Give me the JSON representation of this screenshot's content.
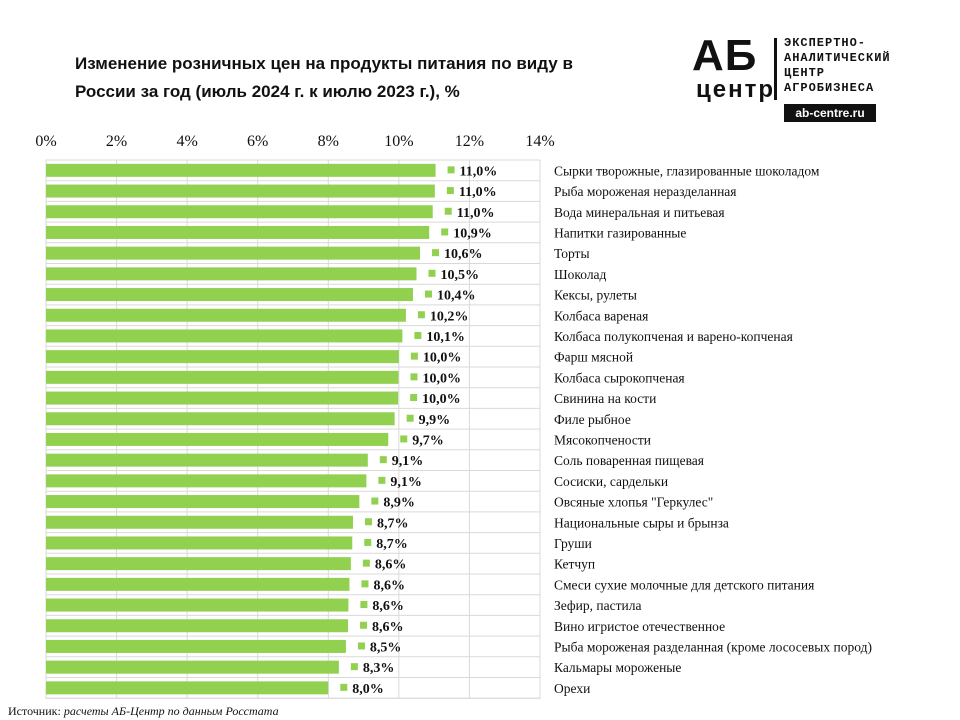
{
  "title": "Изменение розничных цен на продукты питания по виду в России за год (июль 2024 г. к июлю 2023 г.), %",
  "logo": {
    "big": "АБ",
    "small": "центр",
    "lines": [
      "ЭКСПЕРТНО-",
      "АНАЛИТИЧЕСКИЙ",
      "ЦЕНТР",
      "АГРОБИЗНЕСА"
    ],
    "site": "ab-centre.ru"
  },
  "source": {
    "label": "Источник:",
    "text": "расчеты АБ-Центр по данным Росстата"
  },
  "colors": {
    "bar": "#92D050",
    "grid": "#D9D9D9"
  },
  "chart_data": {
    "type": "bar",
    "orientation": "horizontal",
    "axis_ticks": [
      "0%",
      "2%",
      "4%",
      "6%",
      "8%",
      "10%",
      "12%",
      "14%"
    ],
    "xlim": [
      0,
      14
    ],
    "grid": true,
    "legend": "none",
    "categories": [
      "Сырки творожные, глазированные шоколадом",
      "Рыба мороженая неразделанная",
      "Вода минеральная и питьевая",
      "Напитки газированные",
      "Торты",
      "Шоколад",
      "Кексы, рулеты",
      "Колбаса вареная",
      "Колбаса полукопченая и варено-копченая",
      "Фарш мясной",
      "Колбаса сырокопченая",
      "Свинина на кости",
      "Филе рыбное",
      "Мясокопчености",
      "Соль поваренная пищевая",
      "Сосиски, сардельки",
      "Овсяные хлопья \"Геркулес\"",
      "Национальные сыры и брынза",
      "Груши",
      "Кетчуп",
      "Смеси сухие молочные для детского питания",
      "Зефир, пастила",
      "Вино игристое отечественное",
      "Рыба мороженая разделанная (кроме лососевых пород)",
      "Кальмары мороженые",
      "Орехи"
    ],
    "values": [
      11.04,
      11.02,
      10.96,
      10.86,
      10.6,
      10.5,
      10.4,
      10.2,
      10.1,
      10.0,
      9.99,
      9.98,
      9.88,
      9.7,
      9.12,
      9.08,
      8.88,
      8.7,
      8.68,
      8.64,
      8.6,
      8.57,
      8.56,
      8.5,
      8.3,
      8.0
    ],
    "labels": [
      "11,0%",
      "11,0%",
      "11,0%",
      "10,9%",
      "10,6%",
      "10,5%",
      "10,4%",
      "10,2%",
      "10,1%",
      "10,0%",
      "10,0%",
      "10,0%",
      "9,9%",
      "9,7%",
      "9,1%",
      "9,1%",
      "8,9%",
      "8,7%",
      "8,7%",
      "8,6%",
      "8,6%",
      "8,6%",
      "8,6%",
      "8,5%",
      "8,3%",
      "8,0%"
    ]
  }
}
